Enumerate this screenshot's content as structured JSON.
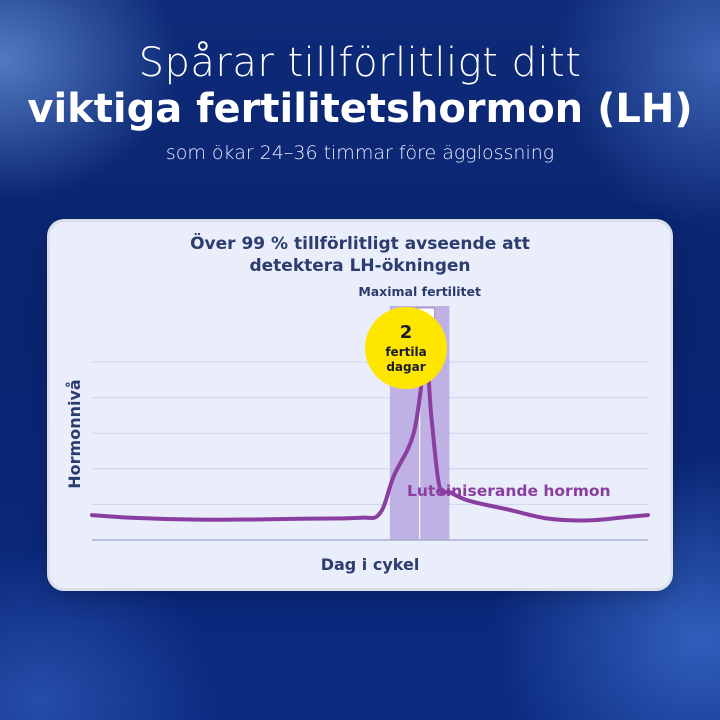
{
  "headline": {
    "line1": "Spårar tillförlitligt ditt",
    "line2": "viktiga fertilitetshormon (LH)",
    "line3": "som ökar 24–36 timmar före ägglossning"
  },
  "chart_data": {
    "type": "line",
    "title_line1": "Över 99 % tillförlitligt avseende att",
    "title_line2": "detektera LH-ökningen",
    "xlabel": "Dag i cykel",
    "ylabel": "Hormonnivå",
    "xlim": [
      0,
      28
    ],
    "ylim": [
      0,
      100
    ],
    "grid": true,
    "series": [
      {
        "name": "Luteiniserande hormon",
        "color": "#8a3fa0",
        "x": [
          0,
          2,
          5,
          8,
          11,
          13.5,
          14.5,
          15.2,
          16.2,
          16.8,
          17.1,
          17.5,
          18,
          19,
          21,
          23,
          25,
          27,
          28
        ],
        "y": [
          14,
          12.5,
          11.5,
          11.5,
          12,
          12.5,
          15,
          36,
          60,
          100,
          68,
          30,
          27,
          22,
          17,
          12,
          11,
          13,
          14
        ]
      }
    ],
    "highlight": {
      "label": "Maximal fertilitet",
      "icon": "smiley-face-icon",
      "x_start": 15,
      "x_end": 18,
      "color": "#b9a6e0"
    },
    "badge": {
      "number": "2",
      "line1": "fertila",
      "line2": "dagar",
      "color": "#ffe600"
    }
  }
}
